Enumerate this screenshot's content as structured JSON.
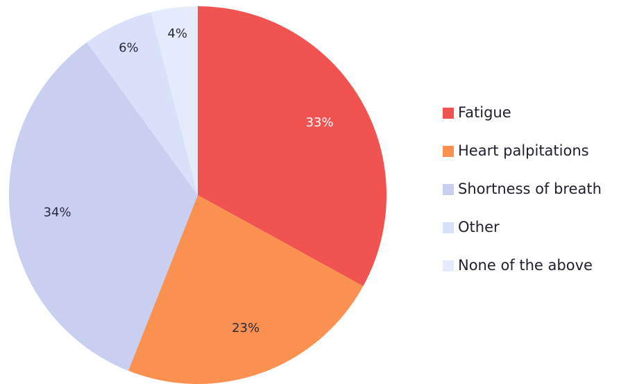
{
  "chart_data": {
    "type": "pie",
    "categories": [
      "Fatigue",
      "Heart palpitations",
      "Shortness of breath",
      "Other",
      "None of the above"
    ],
    "values": [
      33,
      23,
      34,
      6,
      4
    ],
    "value_labels": [
      "33%",
      "23%",
      "34%",
      "6%",
      "4%"
    ],
    "colors": [
      "#f15350",
      "#fb9150",
      "#c9cff1",
      "#d9e0fa",
      "#e6ebfc"
    ],
    "legend": "right"
  }
}
